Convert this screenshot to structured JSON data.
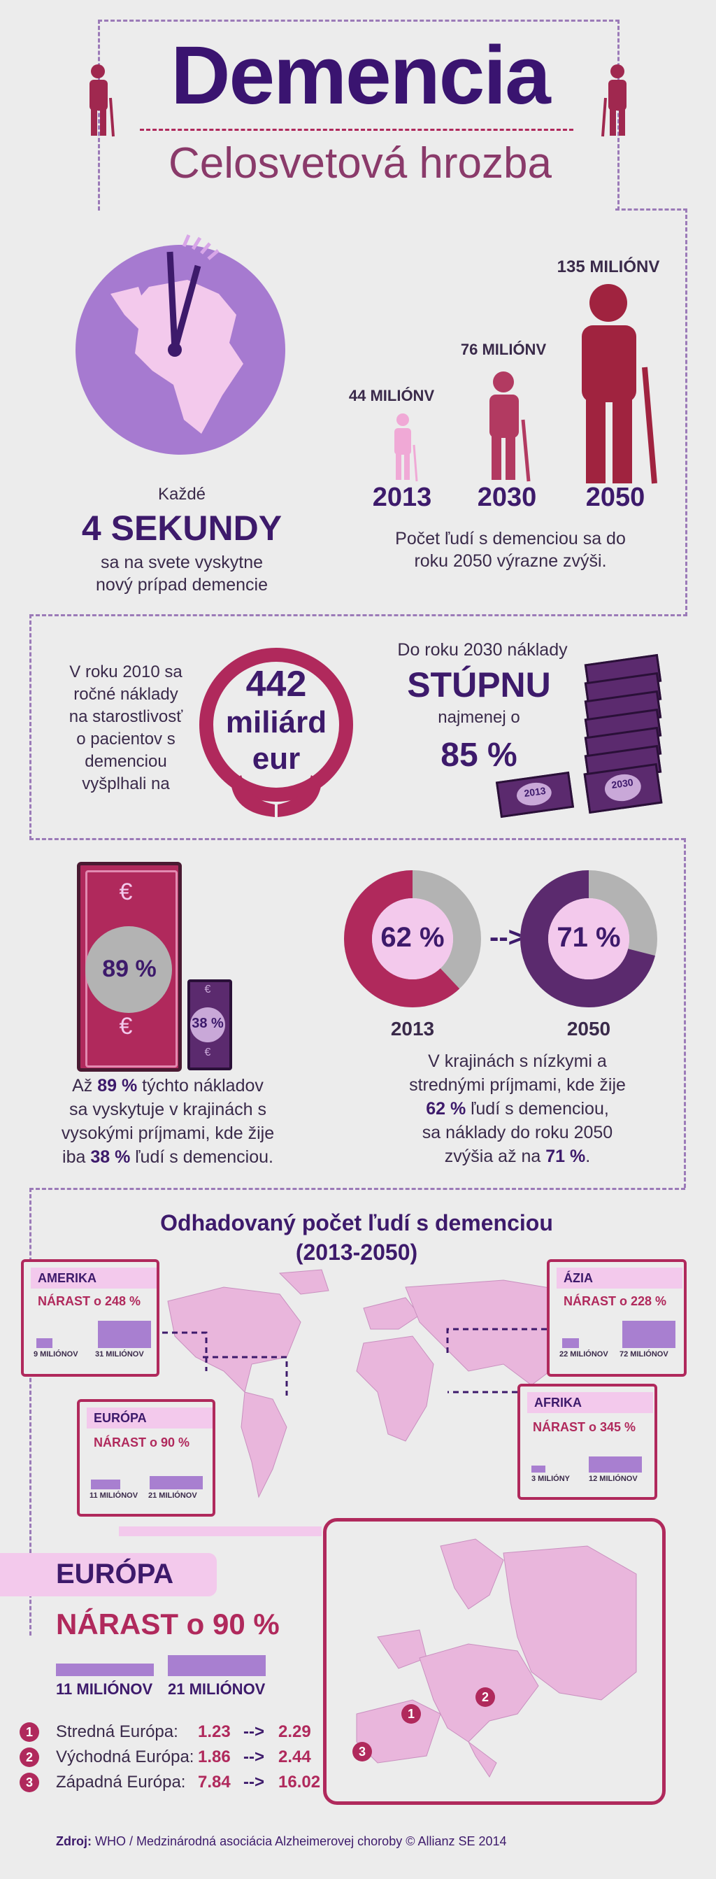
{
  "header": {
    "title": "Demencia",
    "subtitle": "Celosvetová hrozba"
  },
  "section1": {
    "every": "Každé",
    "seconds": "4 SEKUNDY",
    "line1": "sa na svete vyskytne",
    "line2": "nový prípad demencie",
    "years": [
      {
        "year": "2013",
        "label": "44 MILIÓNV"
      },
      {
        "year": "2030",
        "label": "76 MILIÓNV"
      },
      {
        "year": "2050",
        "label": "135 MILIÓNV"
      }
    ],
    "growth_line1": "Počet ľudí s demenciou sa do",
    "growth_line2": "roku 2050 výrazne zvýši."
  },
  "section2": {
    "left_lines": [
      "V roku 2010 sa",
      "ročné náklady",
      "na starostlivosť",
      "o pacientov s",
      "demenciou",
      "vyšplhali na"
    ],
    "amount": "442",
    "unit": "miliárd",
    "currency": "eur",
    "right_top": "Do roku 2030 náklady",
    "rise": "STÚPNU",
    "atleast": "najmenej o",
    "percent": "85 %",
    "bill_2013": "2013",
    "bill_2030": "2030"
  },
  "section3": {
    "big_pct": "89 %",
    "small_pct": "38 %",
    "left_lines": [
      {
        "a": "Až ",
        "b": "89 %",
        "c": " týchto nákladov"
      },
      {
        "a": "sa vyskytuje v krajinách s",
        "b": "",
        "c": ""
      },
      {
        "a": "vysokými príjmami, kde žije",
        "b": "",
        "c": ""
      },
      {
        "a": "iba ",
        "b": "38 %",
        "c": " ľudí s demenciou."
      }
    ],
    "donut_2013_pct": "62 %",
    "donut_2050_pct": "71 %",
    "donut_2013_value": 62,
    "donut_2050_value": 71,
    "arrow": "-->",
    "year_2013": "2013",
    "year_2050": "2050",
    "right_lines": [
      {
        "a": "V krajinách s nízkymi a",
        "b": "",
        "c": ""
      },
      {
        "a": "strednými príjmami, kde žije",
        "b": "",
        "c": ""
      },
      {
        "a": "",
        "b": "62 %",
        "c": " ľudí s demenciou,"
      },
      {
        "a": "sa náklady do roku 2050",
        "b": "",
        "c": ""
      },
      {
        "a": "zvýšia až na ",
        "b": "71 %",
        "c": "."
      }
    ]
  },
  "section4": {
    "title1": "Odhadovaný počet ľudí s demenciou",
    "title2": "(2013-2050)",
    "regions": [
      {
        "name": "AMERIKA",
        "growth": "NÁRAST o 248 %",
        "from": "9 MILIÓNOV",
        "to": "31 MILIÓNOV",
        "from_value": 9,
        "to_value": 31
      },
      {
        "name": "ÁZIA",
        "growth": "NÁRAST o 228 %",
        "from": "22 MILIÓNOV",
        "to": "72 MILIÓNOV",
        "from_value": 22,
        "to_value": 72
      },
      {
        "name": "EURÓPA",
        "growth": "NÁRAST o 90 %",
        "from": "11 MILIÓNOV",
        "to": "21 MILIÓNOV",
        "from_value": 11,
        "to_value": 21
      },
      {
        "name": "AFRIKA",
        "growth": "NÁRAST o 345 %",
        "from": "3 MILIÓNY",
        "to": "12 MILIÓNOV",
        "from_value": 3,
        "to_value": 12
      }
    ]
  },
  "europe": {
    "title": "EURÓPA",
    "growth": "NÁRAST o 90 %",
    "from": "11 MILIÓNOV",
    "to": "21 MILIÓNOV",
    "rows": [
      {
        "num": "1",
        "name": "Stredná Európa:",
        "from": "1.23",
        "arrow": "-->",
        "to": "2.29"
      },
      {
        "num": "2",
        "name": "Východná Európa:",
        "from": "1.86",
        "arrow": "-->",
        "to": "2.44"
      },
      {
        "num": "3",
        "name": "Západná Európa:",
        "from": "7.84",
        "arrow": "-->",
        "to": "16.02"
      }
    ],
    "map_markers": [
      "1",
      "2",
      "3"
    ]
  },
  "footer": {
    "label": "Zdroj:",
    "text": " WHO / Medzinárodná asociácia Alzheimerovej choroby © Allianz SE 2014"
  },
  "colors": {
    "crimson": "#b0295c",
    "dark_purple": "#3d1a6b",
    "lilac": "#a87fd0",
    "light_pink": "#e9b6dc",
    "grey": "#b3b3b3"
  }
}
